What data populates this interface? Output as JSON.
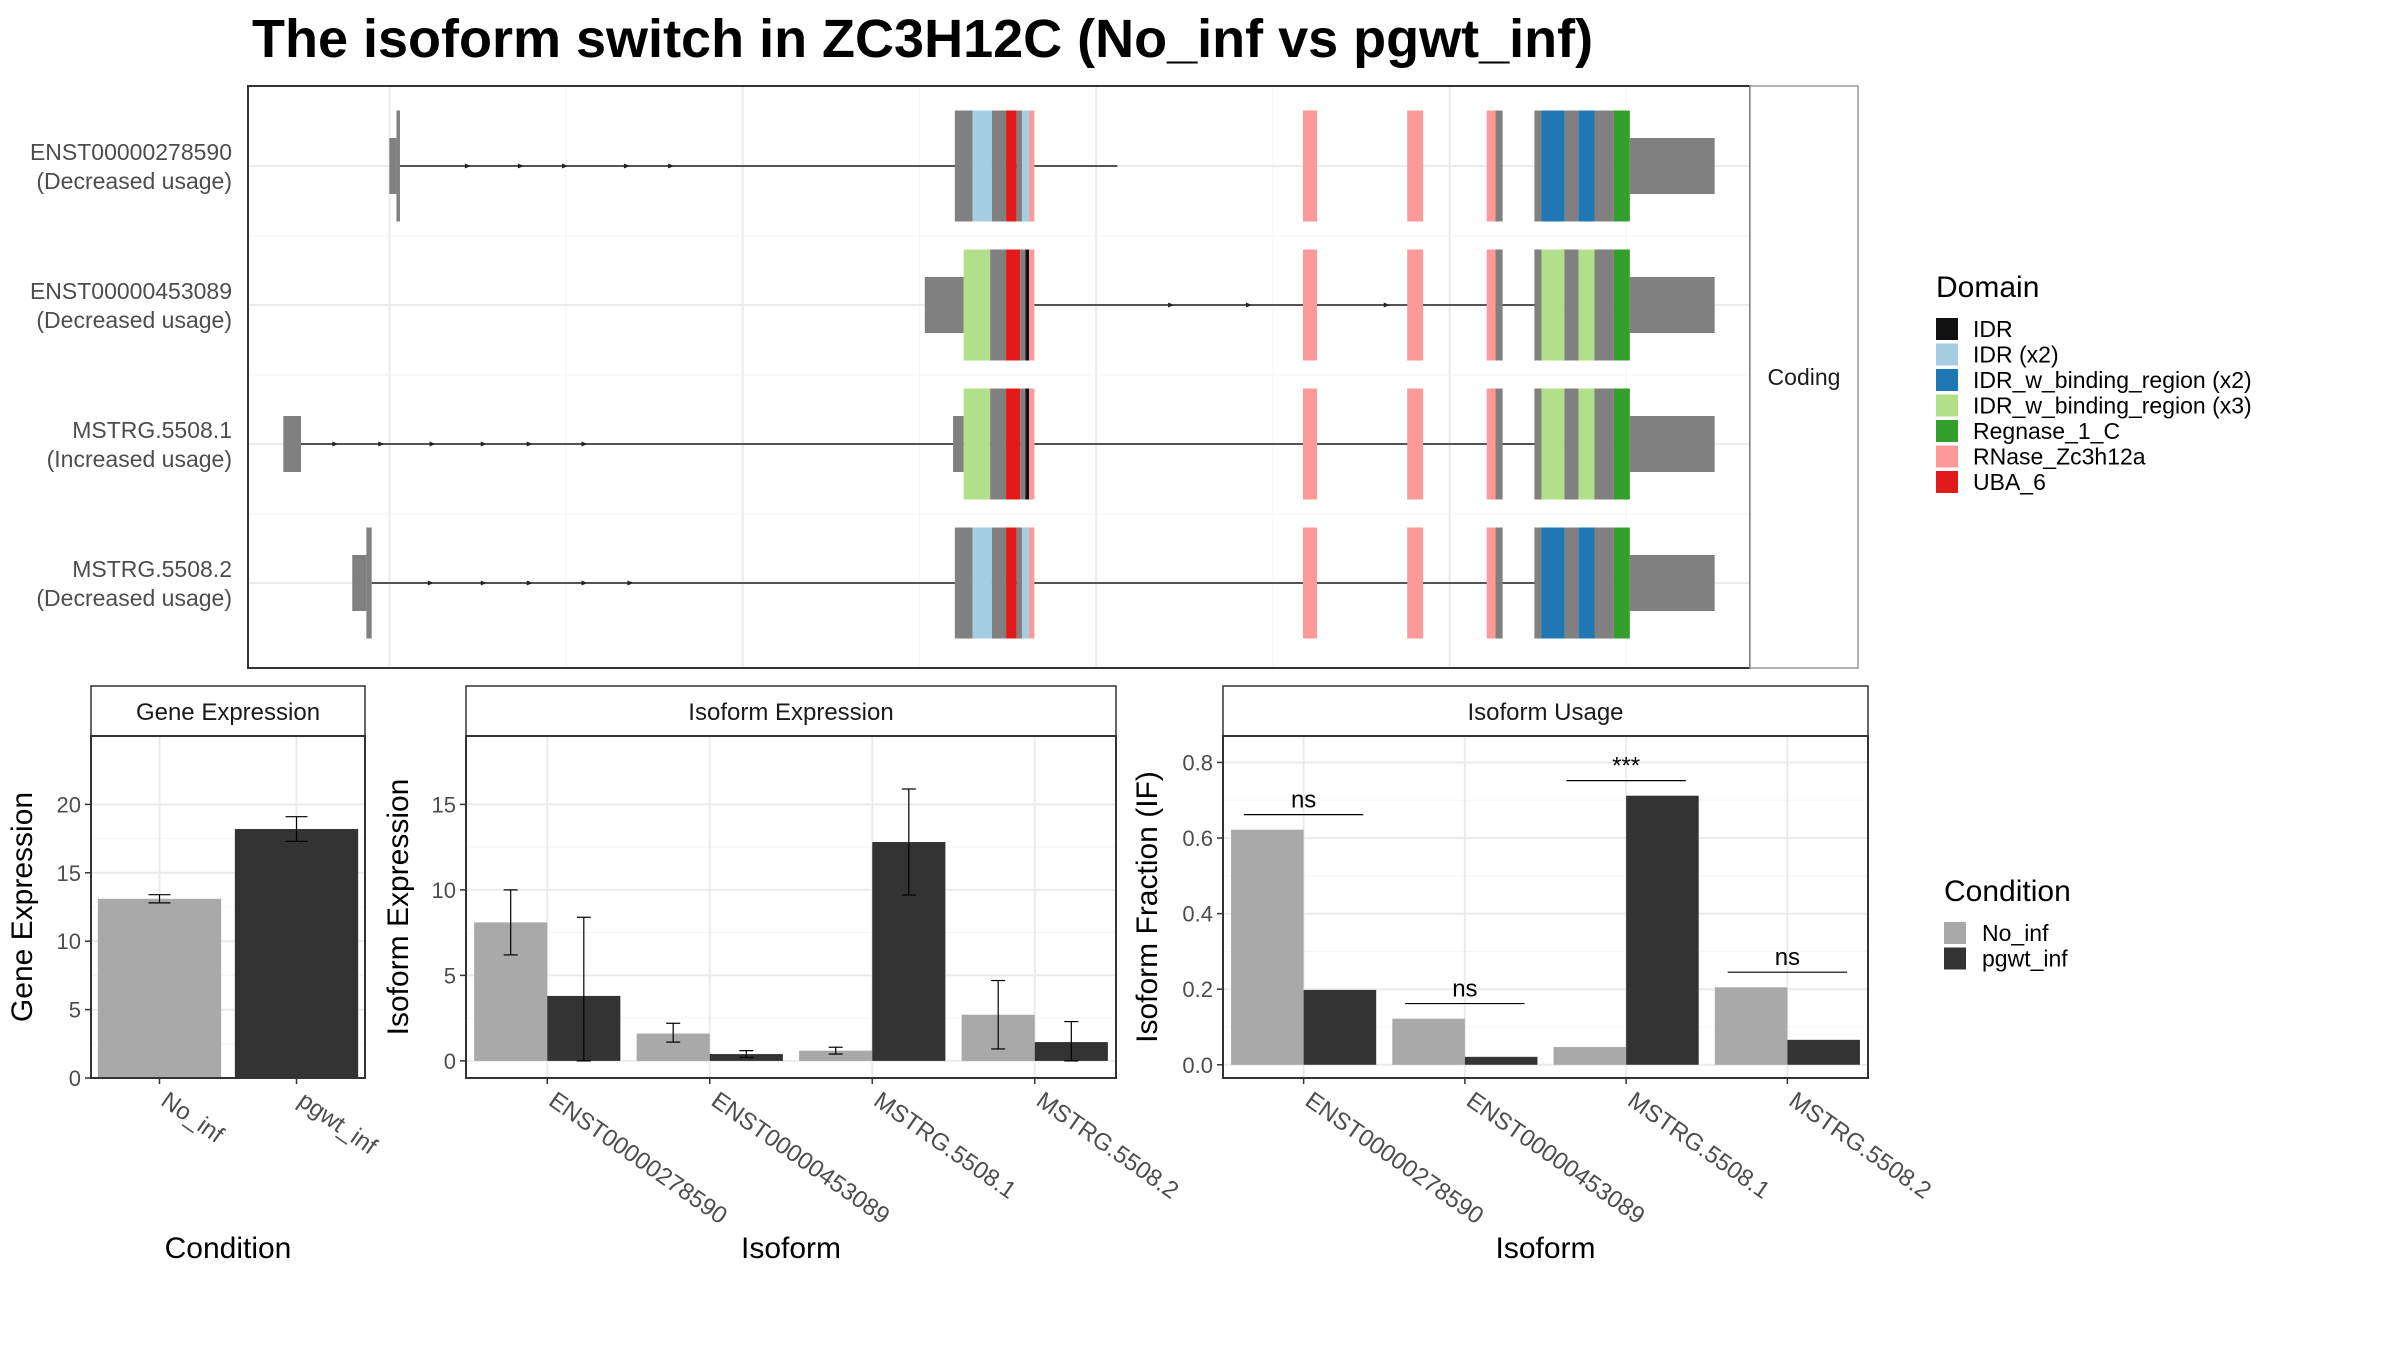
{
  "title": "The isoform switch in ZC3H12C (No_inf vs pgwt_inf)",
  "colors": {
    "no_inf": "#a9a9a9",
    "pgwt_inf": "#333333",
    "exon": "#808080",
    "panel_border": "#333333",
    "strip_bg": "#ffffff",
    "grid": "#ebebeb"
  },
  "chart_data": [
    {
      "type": "gene-structure",
      "facet_label": "Coding",
      "legend": {
        "title": "Domain",
        "items": [
          {
            "key": "idr",
            "label": "IDR",
            "color": "#111111"
          },
          {
            "key": "idr2",
            "label": "IDR (x2)",
            "color": "#a6cee3"
          },
          {
            "key": "idrb2",
            "label": "IDR_w_binding_region (x2)",
            "color": "#1f78b4"
          },
          {
            "key": "idrb3",
            "label": "IDR_w_binding_region (x3)",
            "color": "#b2df8a"
          },
          {
            "key": "regnase",
            "label": "Regnase_1_C",
            "color": "#33a02c"
          },
          {
            "key": "rnase",
            "label": "RNase_Zc3h12a",
            "color": "#fb9a99"
          },
          {
            "key": "uba",
            "label": "UBA_6",
            "color": "#e31a1c"
          }
        ]
      },
      "transcripts": [
        {
          "name": "ENST00000278590",
          "note": "(Decreased usage)",
          "intron": [
            205,
            612
          ],
          "arrows": [
            245,
            275,
            300,
            335,
            360
          ],
          "segments": [
            {
              "from": 200,
              "to": 204,
              "kind": "utr"
            },
            {
              "from": 204,
              "to": 206,
              "kind": "exon"
            },
            {
              "from": 520,
              "to": 530,
              "kind": "exon"
            },
            {
              "from": 530,
              "to": 541,
              "kind": "idr2"
            },
            {
              "from": 541,
              "to": 549,
              "kind": "exon"
            },
            {
              "from": 549,
              "to": 555,
              "kind": "uba"
            },
            {
              "from": 555,
              "to": 558,
              "kind": "exon"
            },
            {
              "from": 558,
              "to": 562,
              "kind": "idr2"
            },
            {
              "from": 562,
              "to": 565,
              "kind": "rnase"
            },
            {
              "from": 717,
              "to": 725,
              "kind": "rnase"
            },
            {
              "from": 776,
              "to": 785,
              "kind": "rnase"
            },
            {
              "from": 821,
              "to": 826,
              "kind": "rnase"
            },
            {
              "from": 826,
              "to": 830,
              "kind": "exon"
            },
            {
              "from": 848,
              "to": 852,
              "kind": "exon"
            },
            {
              "from": 852,
              "to": 865,
              "kind": "idrb2"
            },
            {
              "from": 865,
              "to": 873,
              "kind": "exon"
            },
            {
              "from": 873,
              "to": 882,
              "kind": "idrb2"
            },
            {
              "from": 882,
              "to": 893,
              "kind": "exon"
            },
            {
              "from": 893,
              "to": 902,
              "kind": "regnase"
            },
            {
              "from": 902,
              "to": 950,
              "kind": "utr"
            }
          ]
        },
        {
          "name": "ENST00000453089",
          "note": "(Decreased usage)",
          "intron": [
            565,
            852
          ],
          "arrows": [
            643,
            687,
            721,
            765
          ],
          "segments": [
            {
              "from": 503,
              "to": 525,
              "kind": "utr"
            },
            {
              "from": 525,
              "to": 540,
              "kind": "idrb3"
            },
            {
              "from": 540,
              "to": 549,
              "kind": "exon"
            },
            {
              "from": 549,
              "to": 557,
              "kind": "uba"
            },
            {
              "from": 557,
              "to": 560,
              "kind": "exon"
            },
            {
              "from": 560,
              "to": 562,
              "kind": "idr"
            },
            {
              "from": 562,
              "to": 565,
              "kind": "rnase"
            },
            {
              "from": 717,
              "to": 725,
              "kind": "rnase"
            },
            {
              "from": 776,
              "to": 785,
              "kind": "rnase"
            },
            {
              "from": 821,
              "to": 826,
              "kind": "rnase"
            },
            {
              "from": 826,
              "to": 830,
              "kind": "exon"
            },
            {
              "from": 848,
              "to": 852,
              "kind": "exon"
            },
            {
              "from": 852,
              "to": 865,
              "kind": "idrb3"
            },
            {
              "from": 865,
              "to": 873,
              "kind": "exon"
            },
            {
              "from": 873,
              "to": 882,
              "kind": "idrb3"
            },
            {
              "from": 882,
              "to": 893,
              "kind": "exon"
            },
            {
              "from": 893,
              "to": 902,
              "kind": "regnase"
            },
            {
              "from": 902,
              "to": 950,
              "kind": "utr"
            }
          ]
        },
        {
          "name": "MSTRG.5508.1",
          "note": "(Increased usage)",
          "intron": [
            150,
            852
          ],
          "arrows": [
            170,
            196,
            225,
            254,
            280,
            311
          ],
          "segments": [
            {
              "from": 140,
              "to": 150,
              "kind": "utr"
            },
            {
              "from": 519,
              "to": 525,
              "kind": "utr"
            },
            {
              "from": 525,
              "to": 540,
              "kind": "idrb3"
            },
            {
              "from": 540,
              "to": 549,
              "kind": "exon"
            },
            {
              "from": 549,
              "to": 557,
              "kind": "uba"
            },
            {
              "from": 557,
              "to": 560,
              "kind": "exon"
            },
            {
              "from": 560,
              "to": 562,
              "kind": "idr"
            },
            {
              "from": 562,
              "to": 565,
              "kind": "rnase"
            },
            {
              "from": 717,
              "to": 725,
              "kind": "rnase"
            },
            {
              "from": 776,
              "to": 785,
              "kind": "rnase"
            },
            {
              "from": 821,
              "to": 826,
              "kind": "rnase"
            },
            {
              "from": 826,
              "to": 830,
              "kind": "exon"
            },
            {
              "from": 848,
              "to": 852,
              "kind": "exon"
            },
            {
              "from": 852,
              "to": 865,
              "kind": "idrb3"
            },
            {
              "from": 865,
              "to": 873,
              "kind": "exon"
            },
            {
              "from": 873,
              "to": 882,
              "kind": "idrb3"
            },
            {
              "from": 882,
              "to": 893,
              "kind": "exon"
            },
            {
              "from": 893,
              "to": 902,
              "kind": "regnase"
            },
            {
              "from": 902,
              "to": 950,
              "kind": "utr"
            }
          ]
        },
        {
          "name": "MSTRG.5508.2",
          "note": "(Decreased usage)",
          "intron": [
            190,
            852
          ],
          "arrows": [
            224,
            254,
            280,
            311,
            337
          ],
          "segments": [
            {
              "from": 179,
              "to": 187,
              "kind": "utr"
            },
            {
              "from": 187,
              "to": 190,
              "kind": "exon"
            },
            {
              "from": 520,
              "to": 530,
              "kind": "exon"
            },
            {
              "from": 530,
              "to": 541,
              "kind": "idr2"
            },
            {
              "from": 541,
              "to": 549,
              "kind": "exon"
            },
            {
              "from": 549,
              "to": 555,
              "kind": "uba"
            },
            {
              "from": 555,
              "to": 558,
              "kind": "exon"
            },
            {
              "from": 558,
              "to": 562,
              "kind": "idr2"
            },
            {
              "from": 562,
              "to": 565,
              "kind": "rnase"
            },
            {
              "from": 717,
              "to": 725,
              "kind": "rnase"
            },
            {
              "from": 776,
              "to": 785,
              "kind": "rnase"
            },
            {
              "from": 821,
              "to": 826,
              "kind": "rnase"
            },
            {
              "from": 826,
              "to": 830,
              "kind": "exon"
            },
            {
              "from": 848,
              "to": 852,
              "kind": "exon"
            },
            {
              "from": 852,
              "to": 865,
              "kind": "idrb2"
            },
            {
              "from": 865,
              "to": 873,
              "kind": "exon"
            },
            {
              "from": 873,
              "to": 882,
              "kind": "idrb2"
            },
            {
              "from": 882,
              "to": 893,
              "kind": "exon"
            },
            {
              "from": 893,
              "to": 902,
              "kind": "regnase"
            },
            {
              "from": 902,
              "to": 950,
              "kind": "utr"
            }
          ]
        }
      ]
    },
    {
      "type": "bar",
      "strip_title": "Gene Expression",
      "xlabel": "Condition",
      "ylabel": "Gene Expression",
      "ylim": [
        0,
        25
      ],
      "yticks": [
        0,
        5,
        10,
        15,
        20
      ],
      "categories": [
        "No_inf",
        "pgwt_inf"
      ],
      "values": [
        13.1,
        18.2
      ],
      "errors": [
        [
          12.8,
          13.4
        ],
        [
          17.3,
          19.1
        ]
      ]
    },
    {
      "type": "bar",
      "strip_title": "Isoform Expression",
      "xlabel": "Isoform",
      "ylabel": "Isoform Expression",
      "ylim": [
        -1,
        19
      ],
      "yticks": [
        0,
        5,
        10,
        15
      ],
      "categories": [
        "ENST00000278590",
        "ENST00000453089",
        "MSTRG.5508.1",
        "MSTRG.5508.2"
      ],
      "series": [
        {
          "name": "No_inf",
          "values": [
            8.1,
            1.6,
            0.6,
            2.7
          ],
          "errors": [
            [
              6.2,
              10.0
            ],
            [
              1.1,
              2.2
            ],
            [
              0.4,
              0.8
            ],
            [
              0.7,
              4.7
            ]
          ]
        },
        {
          "name": "pgwt_inf",
          "values": [
            3.8,
            0.4,
            12.8,
            1.1
          ],
          "errors": [
            [
              0.0,
              8.4
            ],
            [
              0.2,
              0.6
            ],
            [
              9.7,
              15.9
            ],
            [
              0.0,
              2.3
            ]
          ]
        }
      ]
    },
    {
      "type": "bar",
      "strip_title": "Isoform Usage",
      "xlabel": "Isoform",
      "ylabel": "Isoform Fraction (IF)",
      "ylim": [
        -0.035,
        0.87
      ],
      "yticks": [
        0.0,
        0.2,
        0.4,
        0.6,
        0.8
      ],
      "ytick_labels": [
        "0.0",
        "0.2",
        "0.4",
        "0.6",
        "0.8"
      ],
      "categories": [
        "ENST00000278590",
        "ENST00000453089",
        "MSTRG.5508.1",
        "MSTRG.5508.2"
      ],
      "series": [
        {
          "name": "No_inf",
          "values": [
            0.622,
            0.122,
            0.047,
            0.205
          ]
        },
        {
          "name": "pgwt_inf",
          "values": [
            0.198,
            0.021,
            0.712,
            0.066
          ]
        }
      ],
      "significance": [
        {
          "label": "ns",
          "y": 0.662
        },
        {
          "label": "ns",
          "y": 0.162
        },
        {
          "label": "***",
          "y": 0.752
        },
        {
          "label": "ns",
          "y": 0.245
        }
      ]
    }
  ],
  "condition_legend": {
    "title": "Condition",
    "items": [
      {
        "label": "No_inf",
        "color": "#a9a9a9"
      },
      {
        "label": "pgwt_inf",
        "color": "#333333"
      }
    ]
  }
}
